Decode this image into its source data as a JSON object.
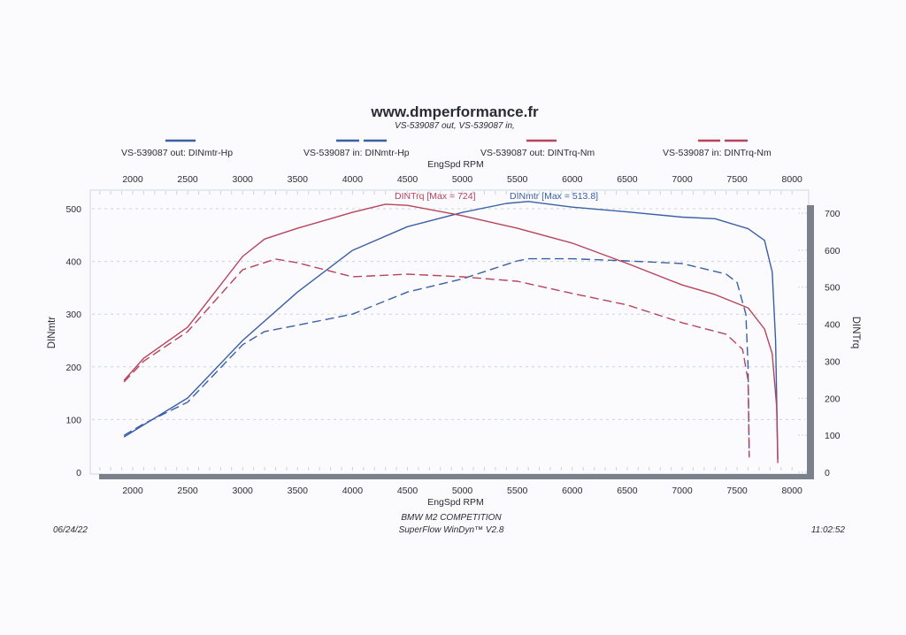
{
  "header": {
    "site": "www.dmperformance.fr",
    "subtitle": "VS-539087 out, VS-539087 in,"
  },
  "legend": [
    {
      "label": "VS-539087 out: DINmtr-Hp",
      "color": "#3a5fa8",
      "style": "solid"
    },
    {
      "label": "VS-539087 in: DINmtr-Hp",
      "color": "#3a5fa8",
      "style": "dashed"
    },
    {
      "label": "VS-539087 out: DINTrq-Nm",
      "color": "#b8435a",
      "style": "solid"
    },
    {
      "label": "VS-539087 in: DINTrq-Nm",
      "color": "#b8435a",
      "style": "dashed"
    }
  ],
  "footer": {
    "date": "06/24/22",
    "car": "BMW M2 COMPETITION",
    "software": "SuperFlow WinDyn™ V2.8",
    "time": "11:02:52"
  },
  "chart_data": {
    "type": "line",
    "title": "www.dmperformance.fr",
    "subtitle": "VS-539087 out, VS-539087 in,",
    "xlabel": "EngSpd RPM",
    "ylabel_left": "DINmtr",
    "ylabel_right": "DINTrq",
    "xlim": [
      1600,
      8200
    ],
    "ylim_left": [
      0,
      530
    ],
    "ylim_right": [
      0,
      740
    ],
    "xticks": [
      "2000",
      "2500",
      "3000",
      "3500",
      "4000",
      "4500",
      "5000",
      "5500",
      "6000",
      "6500",
      "7000",
      "7500",
      "8000"
    ],
    "yticks_left": [
      "0",
      "100",
      "200",
      "300",
      "400",
      "500"
    ],
    "yticks_right": [
      "0",
      "100",
      "200",
      "300",
      "400",
      "500",
      "600",
      "700"
    ],
    "grid": true,
    "legend_position": "top",
    "annotations": [
      {
        "text": "DINTrq [Max = 724]",
        "color": "#b8435a",
        "rpm": 4300
      },
      {
        "text": "DINmtr [Max = 513.8]",
        "color": "#3a5fa8",
        "rpm": 5500
      }
    ],
    "series": [
      {
        "name": "VS-539087 out: DINmtr-Hp",
        "axis": "left",
        "color": "#3a5fa8",
        "style": "solid",
        "x": [
          1920,
          2100,
          2500,
          3000,
          3500,
          4000,
          4500,
          5000,
          5400,
          5600,
          6000,
          6500,
          7000,
          7300,
          7600,
          7750,
          7820,
          7850,
          7870
        ],
        "y": [
          67,
          90,
          141,
          250,
          342,
          421,
          466,
          493,
          510,
          513.8,
          503,
          494,
          484,
          481,
          462,
          440,
          380,
          250,
          25
        ]
      },
      {
        "name": "VS-539087 in: DINmtr-Hp",
        "axis": "left",
        "color": "#3a5fa8",
        "style": "dashed",
        "x": [
          1920,
          2100,
          2500,
          3000,
          3200,
          3500,
          4000,
          4500,
          5000,
          5500,
          5600,
          6000,
          6500,
          7000,
          7400,
          7500,
          7580,
          7600,
          7610
        ],
        "y": [
          70,
          92,
          133,
          242,
          267,
          279,
          300,
          342,
          367,
          401,
          405,
          405,
          401,
          396,
          376,
          360,
          300,
          200,
          30
        ]
      },
      {
        "name": "VS-539087 out: DINTrq-Nm",
        "axis": "right",
        "color": "#b8435a",
        "style": "solid",
        "x": [
          1920,
          2100,
          2500,
          3000,
          3200,
          3500,
          4000,
          4300,
          4500,
          5000,
          5500,
          6000,
          6500,
          7000,
          7300,
          7600,
          7750,
          7820,
          7860,
          7870
        ],
        "y": [
          248,
          308,
          392,
          583,
          630,
          659,
          702,
          724,
          721,
          693,
          659,
          619,
          564,
          506,
          480,
          444,
          387,
          320,
          177,
          25
        ]
      },
      {
        "name": "VS-539087 in: DINTrq-Nm",
        "axis": "right",
        "color": "#b8435a",
        "style": "dashed",
        "x": [
          1920,
          2100,
          2500,
          3000,
          3300,
          3500,
          4000,
          4500,
          5000,
          5500,
          6000,
          6500,
          7000,
          7400,
          7550,
          7600,
          7610
        ],
        "y": [
          244,
          300,
          380,
          547,
          576,
          566,
          528,
          535,
          528,
          516,
          483,
          452,
          404,
          373,
          332,
          248,
          40
        ]
      }
    ]
  }
}
